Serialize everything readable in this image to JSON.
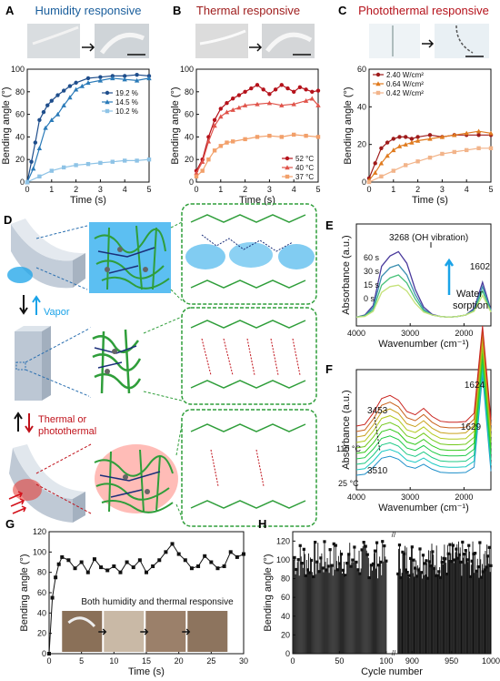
{
  "panels": {
    "A": {
      "letter": "A",
      "title": "Humidity responsive"
    },
    "B": {
      "letter": "B",
      "title": "Thermal responsive"
    },
    "C": {
      "letter": "C",
      "title": "Photothermal responsive"
    },
    "D": {
      "letter": "D",
      "vapor": "Vapor",
      "thermal_line1": "Thermal or",
      "thermal_line2": "photothermal"
    },
    "E": {
      "letter": "E",
      "peak_label": "3268 (OH vibration)",
      "peak2": "1602",
      "annotation_line1": "Water",
      "annotation_line2": "sorption",
      "time_labels": [
        "60 s",
        "30 s",
        "15 s",
        "0 s"
      ]
    },
    "F": {
      "letter": "F",
      "peak1": "3453",
      "peak2": "3510",
      "peak3": "1624",
      "peak4": "1629",
      "temp_high": "110 °C",
      "temp_low": "25 °C"
    },
    "G": {
      "letter": "G",
      "annotation": "Both humidity and thermal responsive"
    },
    "H": {
      "letter": "H"
    }
  },
  "colors": {
    "humidity": [
      "#1f4e8c",
      "#2a7ab8",
      "#8ec3e6"
    ],
    "thermal": [
      "#b5121b",
      "#e0534a",
      "#f2a06a"
    ],
    "photothermal": [
      "#9e1b1b",
      "#e07b1f",
      "#f2b48a"
    ],
    "hydrogel_green": "#2f9e3a",
    "vapor_blue": "#1aa3e8",
    "heat_red": "#e8322a"
  },
  "chart_data": [
    {
      "id": "A",
      "type": "line",
      "title": "Humidity responsive",
      "xlabel": "Time (s)",
      "ylabel": "Bending angle (°)",
      "xlim": [
        0,
        5
      ],
      "ylim": [
        0,
        100
      ],
      "xticks": [
        0,
        1,
        2,
        3,
        4,
        5
      ],
      "yticks": [
        0,
        20,
        40,
        60,
        80,
        100
      ],
      "legend_position": "right",
      "series": [
        {
          "name": "19.2 %",
          "marker": "circle",
          "x": [
            0,
            0.17,
            0.33,
            0.5,
            0.67,
            0.83,
            1.0,
            1.25,
            1.5,
            1.75,
            2.0,
            2.5,
            3.0,
            3.5,
            4.0,
            4.5,
            5.0
          ],
          "values": [
            0,
            18,
            35,
            55,
            62,
            68,
            72,
            77,
            81,
            85,
            88,
            92,
            93,
            94,
            94,
            95,
            94
          ]
        },
        {
          "name": "14.5 %",
          "marker": "triangle",
          "x": [
            0,
            0.25,
            0.5,
            0.75,
            1.0,
            1.25,
            1.5,
            1.75,
            2.0,
            2.25,
            2.5,
            3.0,
            3.5,
            4.0,
            4.5,
            5.0
          ],
          "values": [
            0,
            12,
            30,
            48,
            55,
            60,
            68,
            75,
            82,
            85,
            88,
            90,
            92,
            91,
            90,
            92
          ]
        },
        {
          "name": "10.2 %",
          "marker": "square",
          "x": [
            0,
            0.5,
            1.0,
            1.5,
            2.0,
            2.5,
            3.0,
            3.5,
            4.0,
            4.5,
            5.0
          ],
          "values": [
            0,
            5,
            10,
            13,
            15,
            16,
            17,
            18,
            19,
            19,
            20
          ]
        }
      ]
    },
    {
      "id": "B",
      "type": "line",
      "title": "Thermal responsive",
      "xlabel": "Time (s)",
      "ylabel": "Bending angle (°)",
      "xlim": [
        0,
        5
      ],
      "ylim": [
        0,
        100
      ],
      "xticks": [
        0,
        1,
        2,
        3,
        4,
        5
      ],
      "yticks": [
        0,
        20,
        40,
        60,
        80,
        100
      ],
      "legend_position": "bottom-right",
      "series": [
        {
          "name": "52 °C",
          "marker": "circle",
          "x": [
            0,
            0.25,
            0.5,
            0.75,
            1.0,
            1.25,
            1.5,
            1.75,
            2.0,
            2.25,
            2.5,
            2.75,
            3.0,
            3.25,
            3.5,
            3.75,
            4.0,
            4.25,
            4.5,
            4.75,
            5.0
          ],
          "values": [
            10,
            20,
            40,
            55,
            65,
            70,
            74,
            77,
            80,
            83,
            86,
            82,
            78,
            82,
            86,
            83,
            80,
            84,
            82,
            80,
            81
          ]
        },
        {
          "name": "40 °C",
          "marker": "triangle",
          "x": [
            0,
            0.25,
            0.5,
            0.75,
            1.0,
            1.25,
            1.5,
            1.75,
            2.0,
            2.5,
            3.0,
            3.5,
            4.0,
            4.5,
            4.75,
            5.0
          ],
          "values": [
            8,
            18,
            36,
            50,
            58,
            62,
            64,
            66,
            68,
            69,
            70,
            68,
            69,
            72,
            74,
            68
          ]
        },
        {
          "name": "37 °C",
          "marker": "square",
          "x": [
            0,
            0.25,
            0.5,
            0.75,
            1.0,
            1.25,
            1.5,
            2.0,
            2.5,
            3.0,
            3.5,
            4.0,
            4.5,
            5.0
          ],
          "values": [
            5,
            10,
            20,
            28,
            32,
            35,
            36,
            38,
            40,
            41,
            40,
            42,
            41,
            40
          ]
        }
      ]
    },
    {
      "id": "C",
      "type": "line",
      "title": "Photothermal responsive",
      "xlabel": "Time (s)",
      "ylabel": "Bending angle (°)",
      "xlim": [
        0,
        5
      ],
      "ylim": [
        0,
        60
      ],
      "xticks": [
        0,
        1,
        2,
        3,
        4,
        5
      ],
      "yticks": [
        0,
        20,
        40,
        60
      ],
      "legend_position": "top-left",
      "series": [
        {
          "name": "2.40 W/cm²",
          "marker": "circle",
          "x": [
            0,
            0.25,
            0.5,
            0.75,
            1.0,
            1.25,
            1.5,
            1.75,
            2.0,
            2.5,
            3.0,
            3.5,
            4.0,
            4.5,
            5.0
          ],
          "values": [
            2,
            10,
            18,
            21,
            23,
            24,
            24,
            23,
            24,
            25,
            24,
            25,
            25,
            25,
            25
          ]
        },
        {
          "name": "0.64 W/cm²",
          "marker": "triangle",
          "x": [
            0,
            0.25,
            0.5,
            0.75,
            1.0,
            1.25,
            1.5,
            1.75,
            2.0,
            2.5,
            3.0,
            3.5,
            4.0,
            4.5,
            5.0
          ],
          "values": [
            1,
            5,
            10,
            14,
            17,
            19,
            20,
            21,
            22,
            23,
            24,
            25,
            26,
            27,
            26
          ]
        },
        {
          "name": "0.42 W/cm²",
          "marker": "square",
          "x": [
            0,
            0.5,
            1.0,
            1.5,
            2.0,
            2.5,
            3.0,
            3.5,
            4.0,
            4.5,
            5.0
          ],
          "values": [
            0,
            3,
            6,
            9,
            11,
            13,
            15,
            16,
            17,
            18,
            18
          ]
        }
      ]
    },
    {
      "id": "E",
      "type": "line",
      "xlabel": "Wavenumber (cm⁻¹)",
      "ylabel": "Absorbance (a.u.)",
      "xlim": [
        4000,
        1500
      ],
      "xticks": [
        4000,
        3000,
        2000
      ],
      "yticks": [],
      "series": [
        {
          "name": "60 s",
          "values": [
            0.02,
            0.05,
            0.18,
            0.72,
            0.86,
            0.92,
            0.76,
            0.4,
            0.16,
            0.06,
            0.03,
            0.02,
            0.03,
            0.05,
            0.14,
            0.5,
            0.12
          ]
        },
        {
          "name": "30 s",
          "values": [
            0.02,
            0.04,
            0.15,
            0.58,
            0.7,
            0.74,
            0.6,
            0.33,
            0.13,
            0.05,
            0.03,
            0.02,
            0.03,
            0.05,
            0.12,
            0.44,
            0.11
          ]
        },
        {
          "name": "15 s",
          "values": [
            0.02,
            0.04,
            0.12,
            0.46,
            0.56,
            0.6,
            0.49,
            0.27,
            0.11,
            0.05,
            0.03,
            0.02,
            0.03,
            0.05,
            0.11,
            0.38,
            0.1
          ]
        },
        {
          "name": "0 s",
          "values": [
            0.02,
            0.03,
            0.1,
            0.36,
            0.44,
            0.46,
            0.38,
            0.21,
            0.09,
            0.05,
            0.03,
            0.02,
            0.03,
            0.05,
            0.1,
            0.32,
            0.09
          ]
        }
      ]
    },
    {
      "id": "F",
      "type": "line",
      "xlabel": "Wavenumber (cm⁻¹)",
      "ylabel": "Absorbance (a.u.)",
      "xlim": [
        4000,
        1500
      ],
      "xticks": [
        4000,
        3000,
        2000
      ],
      "yticks": []
    },
    {
      "id": "G",
      "type": "line",
      "xlabel": "Time (s)",
      "ylabel": "Bending angle (°)",
      "xlim": [
        0,
        30
      ],
      "ylim": [
        0,
        120
      ],
      "xticks": [
        0,
        5,
        10,
        15,
        20,
        25,
        30
      ],
      "yticks": [
        0,
        20,
        40,
        60,
        80,
        100,
        120
      ],
      "series": [
        {
          "name": "",
          "marker": "square",
          "x": [
            0,
            0.5,
            1,
            1.5,
            2,
            3,
            4,
            5,
            6,
            7,
            8,
            9,
            10,
            11,
            12,
            13,
            14,
            15,
            16,
            17,
            18,
            19,
            20,
            21,
            22,
            23,
            24,
            25,
            26,
            27,
            28,
            29,
            30
          ],
          "values": [
            0,
            55,
            75,
            88,
            95,
            92,
            84,
            90,
            80,
            93,
            85,
            82,
            86,
            80,
            90,
            85,
            92,
            80,
            86,
            92,
            100,
            108,
            98,
            92,
            84,
            86,
            96,
            90,
            84,
            86,
            100,
            95,
            98
          ]
        }
      ]
    },
    {
      "id": "H",
      "type": "bar",
      "xlabel": "Cycle number",
      "ylabel": "Bending angle (°)",
      "ylim": [
        0,
        130
      ],
      "yticks": [
        0,
        20,
        40,
        60,
        80,
        100,
        120
      ],
      "xticks": [
        0,
        50,
        100,
        900,
        950,
        1000
      ],
      "x_break": "100-880",
      "series": [
        {
          "name": "",
          "values": []
        }
      ]
    }
  ]
}
